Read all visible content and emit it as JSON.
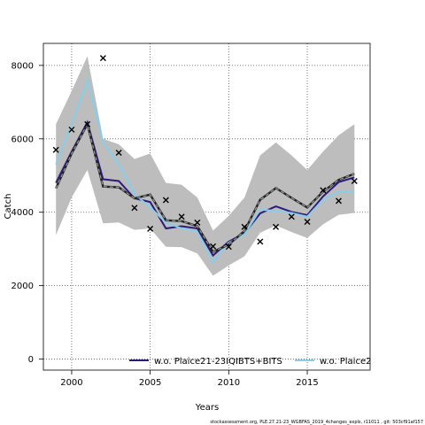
{
  "chart_data": {
    "type": "line",
    "title": "",
    "xlabel": "Years",
    "ylabel": "Catch",
    "xlim": [
      1998.2,
      2019.0
    ],
    "ylim": [
      -300,
      8600
    ],
    "xticks": [
      2000,
      2005,
      2010,
      2015
    ],
    "yticks": [
      0,
      2000,
      4000,
      6000,
      8000
    ],
    "grid": true,
    "legend_position": "bottom",
    "x": [
      1999,
      2000,
      2001,
      2002,
      2003,
      2004,
      2005,
      2006,
      2007,
      2008,
      2009,
      2010,
      2011,
      2012,
      2013,
      2014,
      2015,
      2016,
      2017,
      2018
    ],
    "observed": {
      "name": "",
      "x": [
        1999,
        2000,
        2001,
        2002,
        2003,
        2004,
        2005,
        2006,
        2007,
        2008,
        2009,
        2010,
        2011,
        2012,
        2013,
        2014,
        2015,
        2016,
        2017,
        2018
      ],
      "values": [
        5700,
        6250,
        6400,
        8200,
        5620,
        4120,
        3550,
        4330,
        3880,
        3720,
        3070,
        3060,
        3600,
        3200,
        3600,
        3880,
        3740,
        4600,
        4310,
        4850
      ]
    },
    "band": {
      "name": "",
      "upper": [
        6400,
        7300,
        8250,
        6000,
        5850,
        5450,
        5600,
        4800,
        4750,
        4400,
        3500,
        3900,
        4400,
        5550,
        5900,
        5550,
        5150,
        5650,
        6100,
        6400
      ],
      "lower": [
        3380,
        4400,
        5150,
        3700,
        3720,
        3520,
        3560,
        3060,
        3050,
        2880,
        2270,
        2550,
        2800,
        3440,
        3640,
        3460,
        3300,
        3670,
        3930,
        3980
      ]
    },
    "series": [
      {
        "name": "w.o. Plaice21-23IQIBTS+BITS",
        "color": "#2d1a7a",
        "values": [
          4800,
          5650,
          6450,
          4900,
          4850,
          4380,
          4280,
          3560,
          3620,
          3560,
          2820,
          3200,
          3430,
          3970,
          4160,
          4010,
          3920,
          4430,
          4820,
          4950
        ]
      },
      {
        "name": "w.o. Plaice2",
        "color": "#87ceeb",
        "values": [
          5300,
          6400,
          7600,
          5900,
          5300,
          4500,
          4130,
          3720,
          3560,
          3470,
          2640,
          3170,
          3400,
          4070,
          4040,
          3980,
          3880,
          4340,
          4560,
          4580
        ]
      },
      {
        "name": "",
        "color": "#222222",
        "values": [
          4650,
          5600,
          6400,
          4700,
          4680,
          4380,
          4480,
          3780,
          3760,
          3620,
          2920,
          3120,
          3490,
          4340,
          4660,
          4390,
          4130,
          4560,
          4880,
          5050
        ]
      }
    ]
  },
  "footer": "stockassessment.org, PLE.27.21-23_WGBFAS_2019_4changes_expls, r11011 , git: 503cf91af157"
}
